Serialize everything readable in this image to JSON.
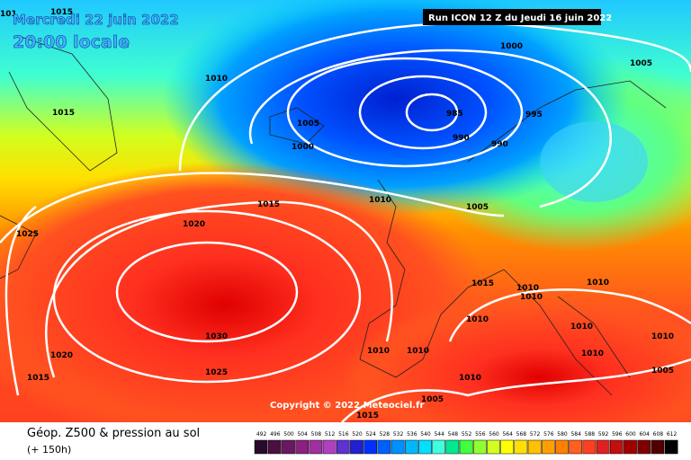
{
  "header": {
    "date": "Mercredi 22 juin 2022",
    "time": "20:00 locale",
    "run": "Run ICON 12 Z du Jeudi 16 juin 2022"
  },
  "copyright": "Copyright © 2022 Meteociel.fr",
  "isobar_labels": [
    101,
    1015,
    1010,
    1015,
    1005,
    1000,
    985,
    990,
    995,
    990,
    1000,
    1005,
    1015,
    1010,
    1005,
    1020,
    1025,
    1015,
    1010,
    1010,
    1010,
    1010,
    1010,
    1030,
    1020,
    1010,
    1010,
    1010,
    1010,
    1025,
    1015,
    1010,
    1005,
    1005,
    1015
  ],
  "legend": {
    "title": "Géop. Z500 & pression au sol",
    "subtitle": "(+ 150h)",
    "labels": [
      492,
      496,
      500,
      504,
      508,
      512,
      516,
      520,
      524,
      528,
      532,
      536,
      540,
      544,
      548,
      552,
      556,
      560,
      564,
      568,
      572,
      576,
      580,
      584,
      588,
      592,
      596,
      600,
      604,
      608,
      612
    ],
    "colors": [
      "#2a0a2a",
      "#4a1040",
      "#6a1860",
      "#8a2080",
      "#a030a0",
      "#b040c0",
      "#6030d0",
      "#2020d0",
      "#0030ff",
      "#0060ff",
      "#0090ff",
      "#00b8ff",
      "#00e0ff",
      "#40ffe0",
      "#00e890",
      "#40ff40",
      "#90ff30",
      "#d0ff20",
      "#ffff00",
      "#ffe000",
      "#ffc000",
      "#ffa000",
      "#ff8000",
      "#ff6020",
      "#ff4020",
      "#e02020",
      "#c01010",
      "#a00000",
      "#800000",
      "#500000",
      "#000000"
    ]
  }
}
